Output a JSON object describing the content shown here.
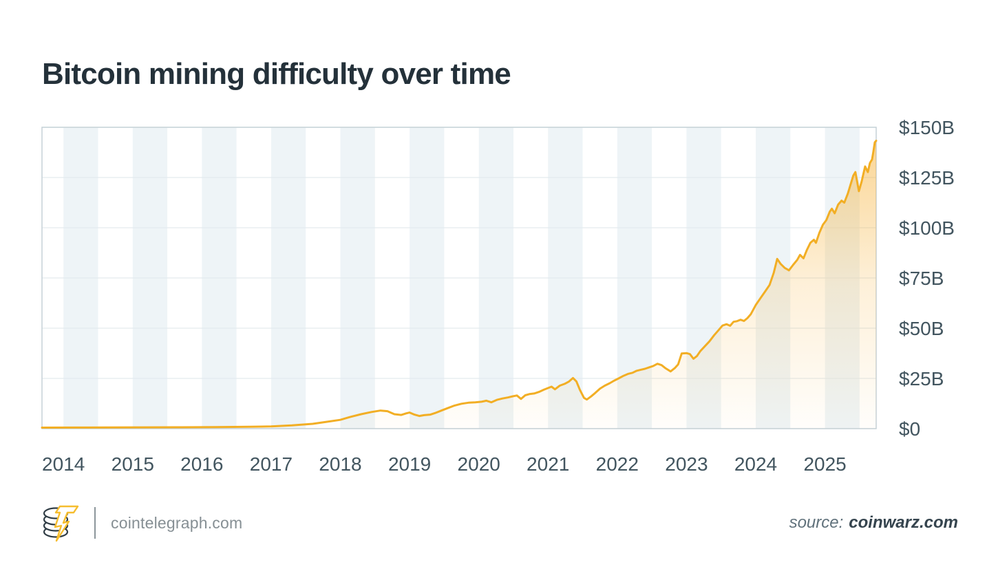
{
  "header": {
    "title": "Bitcoin mining difficulty over time"
  },
  "footer": {
    "brand": {
      "site": "cointelegraph.com",
      "logo_icon": "cointelegraph-coin-stack-lightning-logo"
    },
    "source_prefix": "source:",
    "source_name": "coinwarz.com"
  },
  "chart_data": {
    "type": "area",
    "title": "Bitcoin mining difficulty over time",
    "xlabel": "",
    "ylabel": "",
    "legend": "none",
    "y_axis_side": "right",
    "x_range": [
      2013.69,
      2025.74
    ],
    "y_range": [
      0,
      150
    ],
    "grid": "horizontal",
    "background_stripes": "first half of each year shaded",
    "y_ticks": [
      {
        "value": 0,
        "label": "$0"
      },
      {
        "value": 25,
        "label": "$25B"
      },
      {
        "value": 50,
        "label": "$50B"
      },
      {
        "value": 75,
        "label": "$75B"
      },
      {
        "value": 100,
        "label": "$100B"
      },
      {
        "value": 125,
        "label": "$125B"
      },
      {
        "value": 150,
        "label": "$150B"
      }
    ],
    "x_ticks": [
      {
        "value": 2014,
        "label": "2014"
      },
      {
        "value": 2015,
        "label": "2015"
      },
      {
        "value": 2016,
        "label": "2016"
      },
      {
        "value": 2017,
        "label": "2017"
      },
      {
        "value": 2018,
        "label": "2018"
      },
      {
        "value": 2019,
        "label": "2019"
      },
      {
        "value": 2020,
        "label": "2020"
      },
      {
        "value": 2021,
        "label": "2021"
      },
      {
        "value": 2022,
        "label": "2022"
      },
      {
        "value": 2023,
        "label": "2023"
      },
      {
        "value": 2024,
        "label": "2024"
      },
      {
        "value": 2025,
        "label": "2025"
      }
    ],
    "series": [
      {
        "name": "Bitcoin mining difficulty (USD billions)",
        "points": [
          [
            2013.69,
            0.5
          ],
          [
            2014.2,
            0.55
          ],
          [
            2014.7,
            0.6
          ],
          [
            2015.2,
            0.65
          ],
          [
            2015.7,
            0.7
          ],
          [
            2016.2,
            0.8
          ],
          [
            2016.7,
            0.95
          ],
          [
            2017.0,
            1.1
          ],
          [
            2017.3,
            1.6
          ],
          [
            2017.6,
            2.4
          ],
          [
            2017.8,
            3.4
          ],
          [
            2018.0,
            4.4
          ],
          [
            2018.15,
            5.9
          ],
          [
            2018.3,
            7.2
          ],
          [
            2018.45,
            8.3
          ],
          [
            2018.58,
            9.0
          ],
          [
            2018.68,
            8.7
          ],
          [
            2018.78,
            7.2
          ],
          [
            2018.88,
            6.8
          ],
          [
            2018.95,
            7.6
          ],
          [
            2019.0,
            8.0
          ],
          [
            2019.07,
            7.0
          ],
          [
            2019.14,
            6.3
          ],
          [
            2019.21,
            6.7
          ],
          [
            2019.3,
            7.0
          ],
          [
            2019.38,
            7.9
          ],
          [
            2019.46,
            9.0
          ],
          [
            2019.55,
            10.2
          ],
          [
            2019.65,
            11.5
          ],
          [
            2019.75,
            12.4
          ],
          [
            2019.85,
            12.9
          ],
          [
            2019.95,
            13.1
          ],
          [
            2020.04,
            13.4
          ],
          [
            2020.11,
            13.9
          ],
          [
            2020.18,
            13.1
          ],
          [
            2020.26,
            14.3
          ],
          [
            2020.34,
            15.0
          ],
          [
            2020.42,
            15.5
          ],
          [
            2020.49,
            16.1
          ],
          [
            2020.55,
            16.5
          ],
          [
            2020.61,
            14.8
          ],
          [
            2020.67,
            16.6
          ],
          [
            2020.73,
            17.2
          ],
          [
            2020.8,
            17.5
          ],
          [
            2020.87,
            18.3
          ],
          [
            2020.94,
            19.4
          ],
          [
            2021.0,
            20.2
          ],
          [
            2021.05,
            20.9
          ],
          [
            2021.1,
            19.6
          ],
          [
            2021.17,
            21.4
          ],
          [
            2021.24,
            22.3
          ],
          [
            2021.3,
            23.4
          ],
          [
            2021.36,
            25.2
          ],
          [
            2021.41,
            23.5
          ],
          [
            2021.46,
            19.3
          ],
          [
            2021.52,
            15.3
          ],
          [
            2021.56,
            14.5
          ],
          [
            2021.62,
            16.0
          ],
          [
            2021.68,
            17.7
          ],
          [
            2021.75,
            19.9
          ],
          [
            2021.82,
            21.4
          ],
          [
            2021.89,
            22.6
          ],
          [
            2021.95,
            23.8
          ],
          [
            2022.02,
            25.0
          ],
          [
            2022.09,
            26.3
          ],
          [
            2022.16,
            27.3
          ],
          [
            2022.22,
            27.8
          ],
          [
            2022.28,
            28.8
          ],
          [
            2022.34,
            29.3
          ],
          [
            2022.4,
            29.8
          ],
          [
            2022.46,
            30.5
          ],
          [
            2022.52,
            31.2
          ],
          [
            2022.58,
            32.3
          ],
          [
            2022.64,
            31.6
          ],
          [
            2022.7,
            30.0
          ],
          [
            2022.77,
            28.5
          ],
          [
            2022.83,
            30.1
          ],
          [
            2022.88,
            32.0
          ],
          [
            2022.93,
            37.4
          ],
          [
            2023.0,
            37.6
          ],
          [
            2023.05,
            37.1
          ],
          [
            2023.1,
            34.8
          ],
          [
            2023.15,
            36.1
          ],
          [
            2023.2,
            38.6
          ],
          [
            2023.27,
            41.2
          ],
          [
            2023.33,
            43.4
          ],
          [
            2023.4,
            46.5
          ],
          [
            2023.46,
            48.9
          ],
          [
            2023.52,
            51.3
          ],
          [
            2023.58,
            52.0
          ],
          [
            2023.63,
            51.2
          ],
          [
            2023.68,
            53.2
          ],
          [
            2023.73,
            53.5
          ],
          [
            2023.78,
            54.2
          ],
          [
            2023.83,
            53.6
          ],
          [
            2023.88,
            55.0
          ],
          [
            2023.93,
            57.0
          ],
          [
            2024.0,
            61.5
          ],
          [
            2024.07,
            65.0
          ],
          [
            2024.14,
            68.5
          ],
          [
            2024.2,
            71.5
          ],
          [
            2024.26,
            77.5
          ],
          [
            2024.31,
            84.5
          ],
          [
            2024.36,
            82.0
          ],
          [
            2024.42,
            80.0
          ],
          [
            2024.48,
            78.8
          ],
          [
            2024.54,
            81.5
          ],
          [
            2024.6,
            84.0
          ],
          [
            2024.64,
            86.5
          ],
          [
            2024.69,
            84.8
          ],
          [
            2024.74,
            89.0
          ],
          [
            2024.79,
            92.5
          ],
          [
            2024.84,
            94.0
          ],
          [
            2024.87,
            92.5
          ],
          [
            2024.92,
            97.5
          ],
          [
            2024.97,
            101.5
          ],
          [
            2025.02,
            103.8
          ],
          [
            2025.07,
            108.0
          ],
          [
            2025.1,
            109.5
          ],
          [
            2025.14,
            107.2
          ],
          [
            2025.19,
            111.5
          ],
          [
            2025.24,
            113.5
          ],
          [
            2025.28,
            112.5
          ],
          [
            2025.33,
            117.0
          ],
          [
            2025.37,
            121.5
          ],
          [
            2025.41,
            126.0
          ],
          [
            2025.44,
            127.7
          ],
          [
            2025.49,
            118.2
          ],
          [
            2025.53,
            123.0
          ],
          [
            2025.58,
            130.5
          ],
          [
            2025.62,
            127.7
          ],
          [
            2025.65,
            132.2
          ],
          [
            2025.68,
            134.0
          ],
          [
            2025.7,
            138.0
          ],
          [
            2025.72,
            142.5
          ],
          [
            2025.74,
            143.3
          ]
        ]
      }
    ],
    "colors": {
      "line": "#F2AE24",
      "area_top": "rgba(246,173,44,0.50)",
      "area_mid": "rgba(246,173,44,0.18)",
      "area_bottom": "rgba(246,173,44,0.02)",
      "stripe": "#EEF4F7",
      "grid": "#E3EAEE",
      "border": "#C6D1D7",
      "axis_text": "#42555F"
    }
  }
}
